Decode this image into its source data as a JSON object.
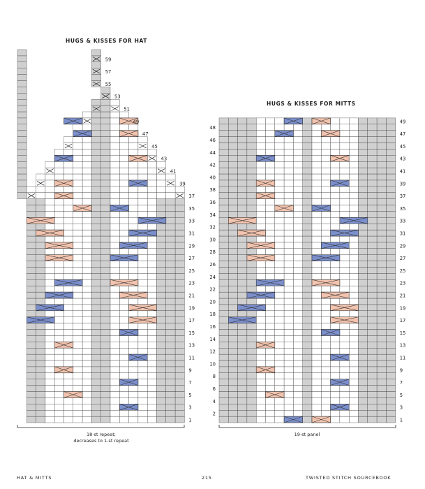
{
  "hat": {
    "title": "HUGS & KISSES FOR HAT",
    "row_labels": [
      "1",
      "3",
      "5",
      "7",
      "9",
      "11",
      "13",
      "15",
      "17",
      "19",
      "21",
      "23",
      "25",
      "27",
      "29",
      "31",
      "33",
      "35",
      "37",
      "39",
      "41",
      "43",
      "45",
      "47",
      "49",
      "51",
      "53",
      "55",
      "57",
      "59"
    ],
    "caption_line1": "18-st repeat;",
    "caption_line2": "decreases to 1-st repeat"
  },
  "mitts": {
    "title": "HUGS & KISSES FOR MITTS",
    "odd_labels": [
      "1",
      "3",
      "5",
      "7",
      "9",
      "11",
      "13",
      "15",
      "17",
      "19",
      "21",
      "23",
      "25",
      "27",
      "29",
      "31",
      "33",
      "35",
      "37",
      "39",
      "41",
      "43",
      "45",
      "47",
      "49"
    ],
    "even_labels": [
      "2",
      "4",
      "6",
      "8",
      "10",
      "12",
      "14",
      "16",
      "18",
      "20",
      "22",
      "24",
      "26",
      "28",
      "30",
      "32",
      "34",
      "36",
      "38",
      "40",
      "42",
      "44",
      "46",
      "48"
    ],
    "caption": "19-st panel"
  },
  "footer": {
    "left": "HAT & MITTS",
    "center": "215",
    "right": "TWISTED STITCH SOURCEBOOK"
  },
  "colors": {
    "grid_line": "#333333",
    "gray_cell": "#d0d0d0",
    "blue_cable": "#7b8fcc",
    "pink_cable": "#f2c3ae"
  }
}
